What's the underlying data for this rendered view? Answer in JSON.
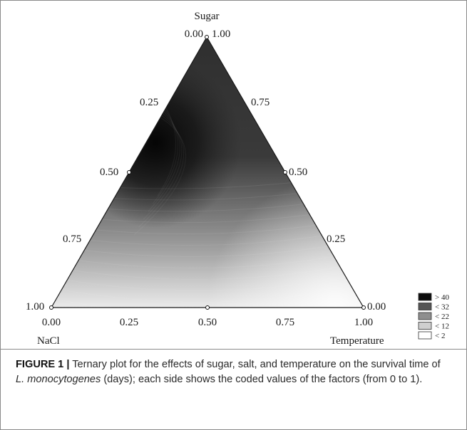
{
  "figure": {
    "axis_sugar": "Sugar",
    "axis_nacl": "NaCl",
    "axis_temperature": "Temperature",
    "ticks_left": [
      "0.00",
      "0.25",
      "0.50",
      "0.75",
      "1.00"
    ],
    "ticks_right": [
      "1.00",
      "0.75",
      "0.50",
      "0.25",
      "0.00"
    ],
    "ticks_bottom": [
      "0.00",
      "0.25",
      "0.50",
      "0.75",
      "1.00"
    ],
    "legend": [
      {
        "label": "> 40",
        "color": "#0c0c0c"
      },
      {
        "label": "< 32",
        "color": "#555555"
      },
      {
        "label": "< 22",
        "color": "#8e8e8e"
      },
      {
        "label": "< 12",
        "color": "#cfcfcf"
      },
      {
        "label": "< 2",
        "color": "#ffffff"
      }
    ]
  },
  "chart_data": {
    "type": "heatmap",
    "subtype": "ternary-contour",
    "axes": [
      "Sugar",
      "NaCl",
      "Temperature"
    ],
    "value_unit": "days",
    "legend_levels": [
      "> 40",
      "< 32",
      "< 22",
      "< 12",
      "< 2"
    ],
    "description_of_field": "Survival time is highest near the Sugar–NaCl edge at sugar ≈ 0.4–0.6 and decreases toward the NaCl–Temperature edge."
  },
  "caption": {
    "label": "FIGURE 1 |",
    "text_before": " Ternary plot for the effects of sugar, salt, and temperature on the survival time of ",
    "species": "L. monocytogenes",
    "text_after": " (days); each side shows the coded values of the factors (from 0 to 1)."
  }
}
